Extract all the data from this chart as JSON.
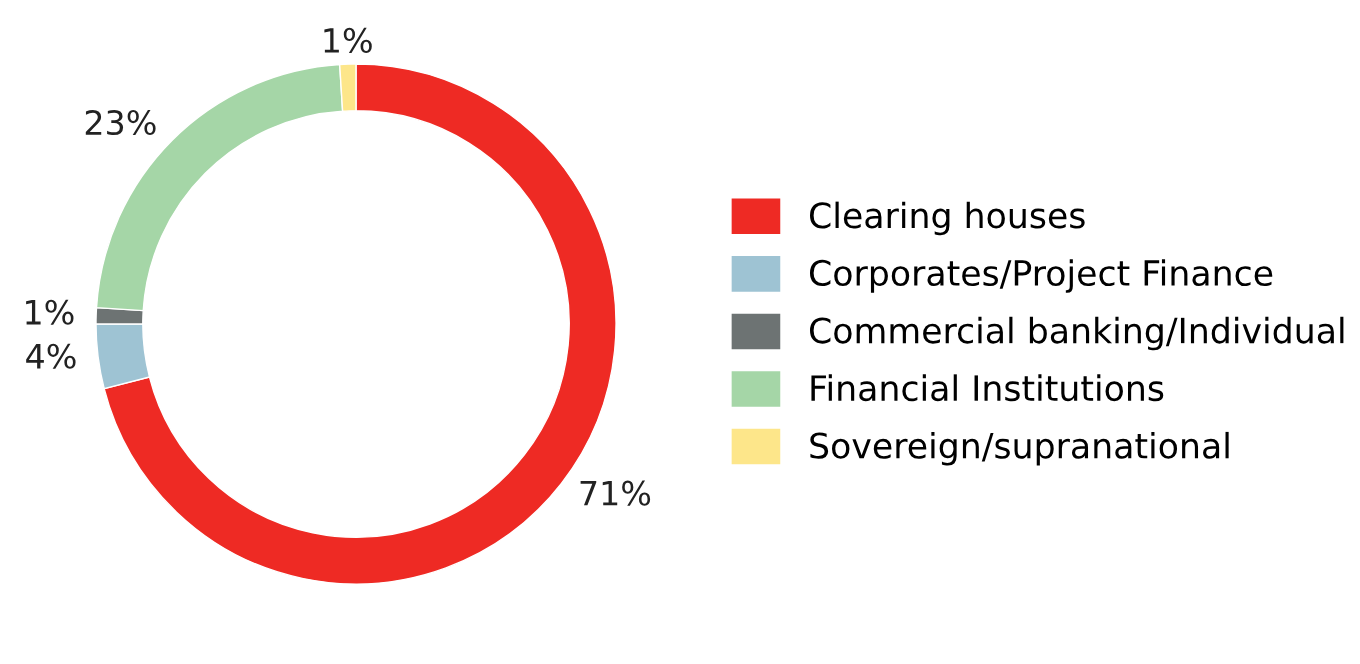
{
  "chart_data": {
    "type": "donut",
    "categories": [
      "Clearing houses",
      "Corporates/Project Finance",
      "Commercial banking/Individual",
      "Financial Institutions",
      "Sovereign/supranational"
    ],
    "values": [
      71,
      4,
      1,
      23,
      1
    ],
    "value_labels": [
      "71%",
      "4%",
      "1%",
      "23%",
      "1%"
    ],
    "colors": [
      "#ee2a24",
      "#9ec3d3",
      "#6d7373",
      "#a5d6a7",
      "#fde68a"
    ],
    "legend": "right"
  }
}
